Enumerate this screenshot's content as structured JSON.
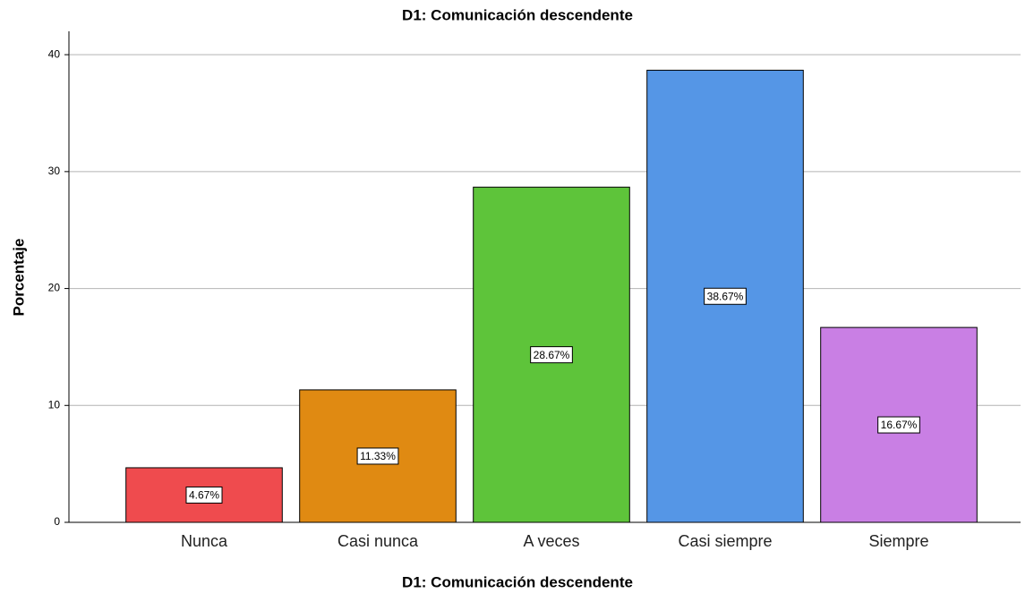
{
  "chart_data": {
    "type": "bar",
    "title": "D1: Comunicación descendente",
    "xlabel": "D1: Comunicación descendente",
    "ylabel": "Porcentaje",
    "categories": [
      "Nunca",
      "Casi nunca",
      "A veces",
      "Casi siempre",
      "Siempre"
    ],
    "values": [
      4.67,
      11.33,
      28.67,
      38.67,
      16.67
    ],
    "value_labels": [
      "4.67%",
      "11.33%",
      "28.67%",
      "38.67%",
      "16.67%"
    ],
    "colors": [
      "#ef4b4e",
      "#e08a12",
      "#5ec43a",
      "#5596e6",
      "#c97fe4"
    ],
    "ylim": [
      0,
      42
    ],
    "yticks": [
      0,
      10,
      20,
      30,
      40
    ],
    "grid": true
  }
}
